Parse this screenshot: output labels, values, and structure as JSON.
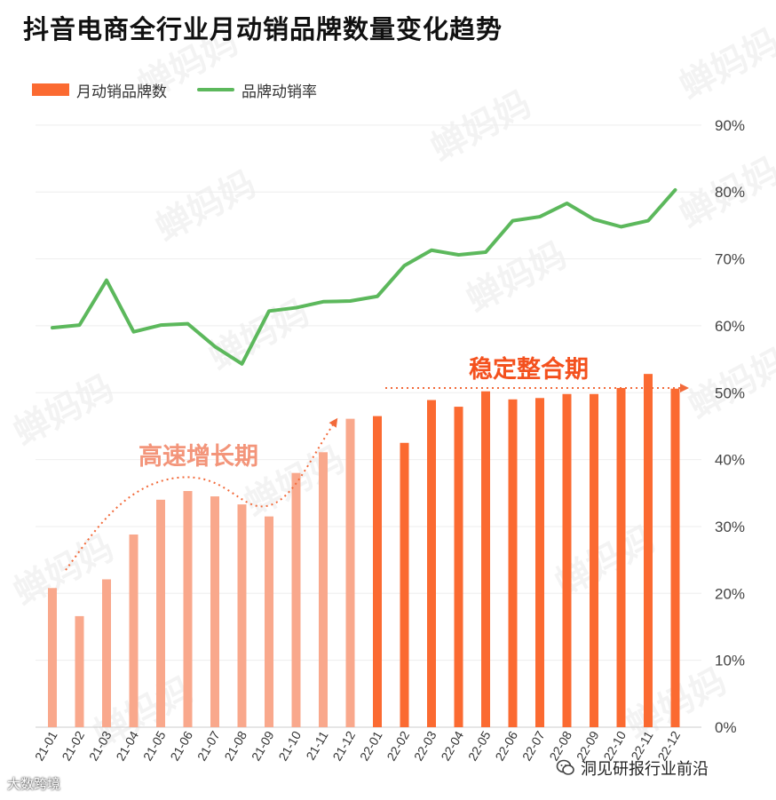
{
  "title": "抖音电商全行业月动销品牌数量变化趋势",
  "watermark": "蝉妈妈",
  "footer": {
    "source_left": "大数跨境",
    "source_right": "洞见研报行业前沿"
  },
  "colors": {
    "bar_growth": "#f9a88c",
    "bar_stable": "#fb6a31",
    "line": "#5cb85c",
    "arrow": "#f26a3a",
    "annot_growth": "#f3957a",
    "annot_stable": "#f4511e",
    "grid": "#eeeeee"
  },
  "chart_data": {
    "type": "bar",
    "title": "抖音电商全行业月动销品牌数量变化趋势",
    "categories": [
      "21-01",
      "21-02",
      "21-03",
      "21-04",
      "21-05",
      "21-06",
      "21-07",
      "21-08",
      "21-09",
      "21-10",
      "21-11",
      "21-12",
      "22-01",
      "22-02",
      "22-03",
      "22-04",
      "22-05",
      "22-06",
      "22-07",
      "22-08",
      "22-09",
      "22-10",
      "22-11",
      "22-12"
    ],
    "series": [
      {
        "name": "月动销品牌数",
        "type": "bar",
        "values": [
          20.8,
          16.6,
          22.1,
          28.8,
          34.0,
          35.3,
          34.5,
          33.3,
          31.5,
          38.0,
          41.1,
          46.1,
          46.5,
          42.5,
          48.9,
          47.9,
          50.2,
          49.0,
          49.2,
          49.8,
          49.8,
          50.7,
          52.8,
          50.6
        ]
      },
      {
        "name": "品牌动销率",
        "type": "line",
        "values": [
          59.7,
          60.1,
          66.8,
          59.1,
          60.1,
          60.3,
          56.9,
          54.3,
          62.2,
          62.7,
          63.6,
          63.7,
          64.4,
          69.0,
          71.3,
          70.6,
          71.0,
          75.7,
          76.3,
          78.3,
          75.9,
          74.8,
          75.7,
          80.3
        ]
      }
    ],
    "yticks": [
      "0%",
      "10%",
      "20%",
      "30%",
      "40%",
      "50%",
      "60%",
      "70%",
      "80%",
      "90%"
    ],
    "ylim": [
      0,
      90
    ],
    "grid": true,
    "legend": "top-left",
    "annotations": [
      {
        "text": "高速增长期",
        "phase": "growth",
        "from": "21-01",
        "to": "21-12"
      },
      {
        "text": "稳定整合期",
        "phase": "stable",
        "from": "22-01",
        "to": "22-12"
      }
    ]
  }
}
